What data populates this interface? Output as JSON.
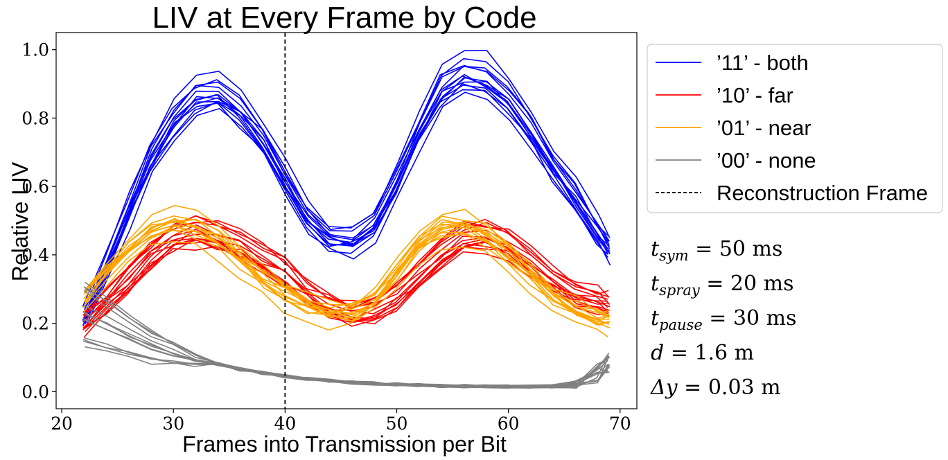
{
  "chart_data": {
    "type": "line",
    "title": "LIV at Every Frame by Code",
    "xlabel": "Frames into Transmission per Bit",
    "ylabel": "Relative LIV",
    "xlim": [
      19.5,
      71.5
    ],
    "ylim": [
      -0.05,
      1.05
    ],
    "xticks": [
      20,
      30,
      40,
      50,
      60,
      70
    ],
    "yticks": [
      0.0,
      0.2,
      0.4,
      0.6,
      0.8,
      1.0
    ],
    "xtick_labels": [
      "20",
      "30",
      "40",
      "50",
      "60",
      "70"
    ],
    "ytick_labels": [
      "0.0",
      "0.2",
      "0.4",
      "0.6",
      "0.8",
      "1.0"
    ],
    "legend_position": "outside-right-top",
    "reconstruction_frame": 40,
    "series": [
      {
        "name": "’11’ - both",
        "color": "#0000ff",
        "trace_count": 14,
        "x": [
          22,
          24,
          26,
          28,
          30,
          32,
          34,
          36,
          38,
          40,
          42,
          44,
          46,
          48,
          50,
          52,
          54,
          56,
          58,
          60,
          62,
          64,
          66,
          68,
          69
        ],
        "y": [
          0.22,
          0.37,
          0.53,
          0.68,
          0.79,
          0.86,
          0.87,
          0.82,
          0.74,
          0.62,
          0.51,
          0.45,
          0.44,
          0.49,
          0.61,
          0.76,
          0.88,
          0.93,
          0.92,
          0.86,
          0.77,
          0.66,
          0.57,
          0.47,
          0.42
        ]
      },
      {
        "name": "’10’ - far",
        "color": "#ff0000",
        "trace_count": 14,
        "x": [
          22,
          24,
          26,
          28,
          30,
          32,
          34,
          36,
          38,
          40,
          42,
          44,
          46,
          48,
          50,
          52,
          54,
          56,
          58,
          60,
          62,
          64,
          66,
          68,
          69
        ],
        "y": [
          0.2,
          0.26,
          0.33,
          0.4,
          0.45,
          0.47,
          0.46,
          0.43,
          0.39,
          0.35,
          0.29,
          0.25,
          0.23,
          0.24,
          0.28,
          0.34,
          0.4,
          0.45,
          0.46,
          0.43,
          0.38,
          0.33,
          0.29,
          0.27,
          0.26
        ]
      },
      {
        "name": "’01’ - near",
        "color": "#ffa500",
        "trace_count": 14,
        "x": [
          22,
          24,
          26,
          28,
          30,
          32,
          34,
          36,
          38,
          40,
          42,
          44,
          46,
          48,
          50,
          52,
          54,
          56,
          58,
          60,
          62,
          64,
          66,
          68,
          69
        ],
        "y": [
          0.27,
          0.35,
          0.42,
          0.47,
          0.49,
          0.48,
          0.44,
          0.39,
          0.33,
          0.28,
          0.25,
          0.23,
          0.23,
          0.27,
          0.35,
          0.43,
          0.48,
          0.48,
          0.45,
          0.4,
          0.34,
          0.28,
          0.24,
          0.21,
          0.2
        ]
      },
      {
        "name": "’00’ - none",
        "color": "#808080",
        "trace_count": 14,
        "x": [
          22,
          24,
          26,
          28,
          30,
          32,
          34,
          36,
          38,
          40,
          42,
          44,
          46,
          48,
          50,
          52,
          54,
          56,
          58,
          60,
          62,
          64,
          66,
          68,
          69
        ],
        "y": [
          0.22,
          0.19,
          0.16,
          0.13,
          0.11,
          0.09,
          0.08,
          0.065,
          0.055,
          0.045,
          0.038,
          0.032,
          0.027,
          0.024,
          0.021,
          0.019,
          0.017,
          0.016,
          0.015,
          0.015,
          0.015,
          0.015,
          0.018,
          0.045,
          0.07
        ]
      }
    ],
    "legend_entries": [
      {
        "label": "’11’ - both",
        "color": "#0000ff",
        "style": "solid"
      },
      {
        "label": "’10’ - far",
        "color": "#ff0000",
        "style": "solid"
      },
      {
        "label": "’01’ - near",
        "color": "#ffa500",
        "style": "solid"
      },
      {
        "label": "’00’ - none",
        "color": "#808080",
        "style": "solid"
      },
      {
        "label": "Reconstruction Frame",
        "color": "#000000",
        "style": "dashed"
      }
    ],
    "annotations": [
      {
        "base": "t",
        "sub": "sym",
        "rest": " = 50 ms"
      },
      {
        "base": "t",
        "sub": "spray",
        "rest": " = 20 ms"
      },
      {
        "base": "t",
        "sub": "pause",
        "rest": " = 30 ms"
      },
      {
        "base": "d",
        "sub": "",
        "rest": " = 1.6 m"
      },
      {
        "base": "Δy",
        "sub": "",
        "rest": " = 0.03 m"
      }
    ]
  }
}
